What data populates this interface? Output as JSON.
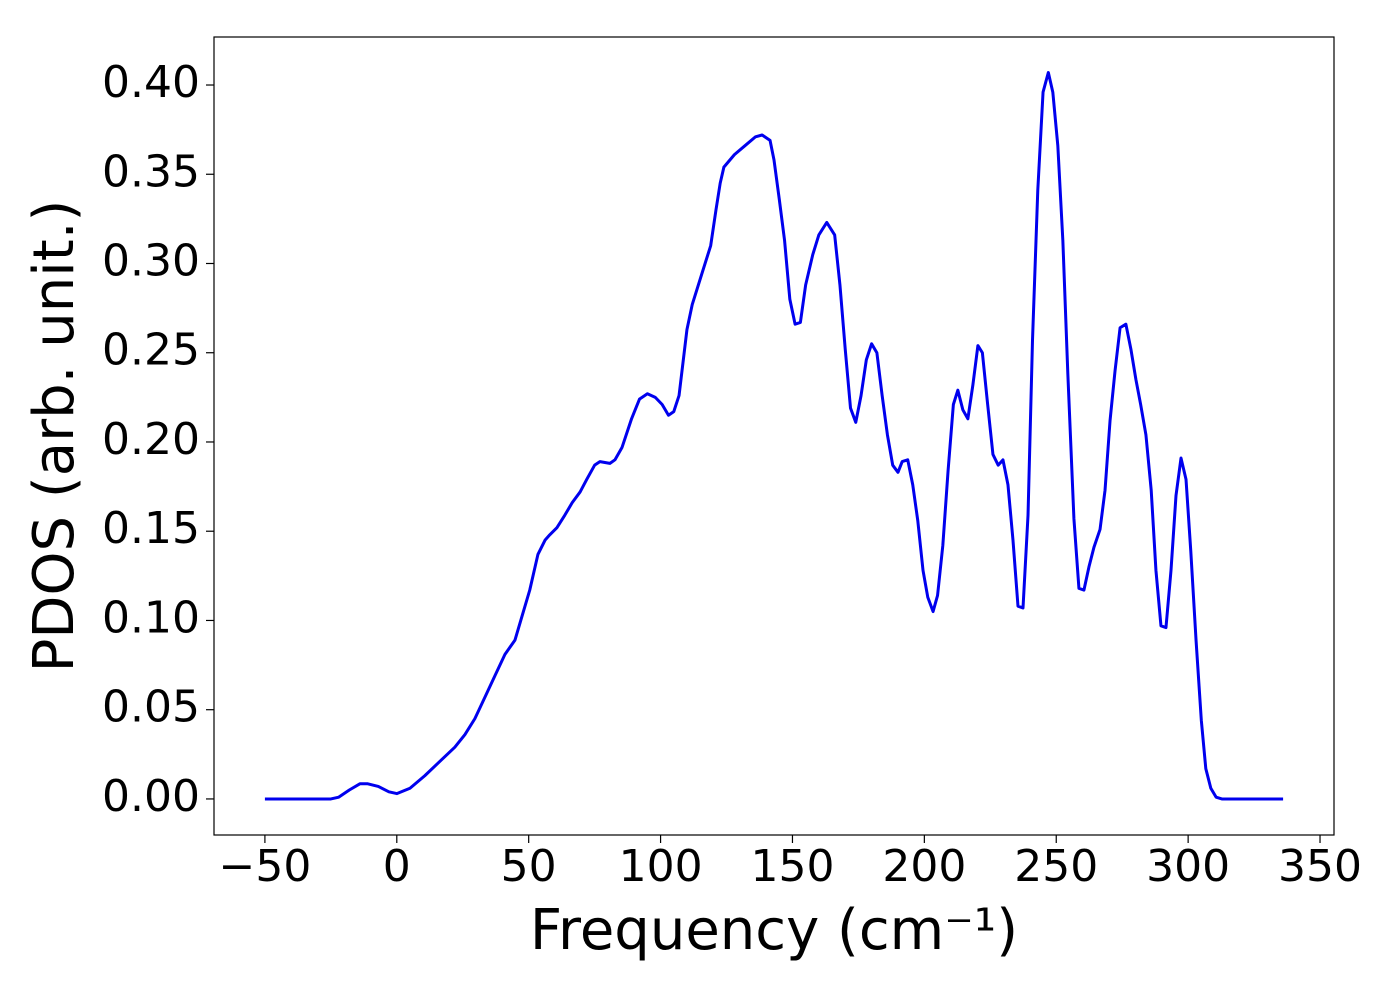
{
  "chart_data": {
    "type": "line",
    "xlabel": "Frequency (cm⁻¹)",
    "ylabel": "PDOS (arb. unit.)",
    "xlim": [
      -69.3,
      355.3
    ],
    "ylim": [
      -0.0202,
      0.4269
    ],
    "xticks": [
      {
        "value": -50,
        "label": "−50"
      },
      0,
      50,
      100,
      150,
      200,
      250,
      300,
      350
    ],
    "yticks": [
      {
        "value": 0,
        "label": "0.00"
      },
      {
        "value": 0.05,
        "label": "0.05"
      },
      {
        "value": 0.1,
        "label": "0.10"
      },
      {
        "value": 0.15,
        "label": "0.15"
      },
      {
        "value": 0.2,
        "label": "0.20"
      },
      {
        "value": 0.25,
        "label": "0.25"
      },
      {
        "value": 0.3,
        "label": "0.30"
      },
      {
        "value": 0.35,
        "label": "0.35"
      },
      {
        "value": 0.4,
        "label": "0.40"
      }
    ],
    "grid": false,
    "x": [
      -50,
      -25,
      -22,
      -18,
      -14,
      -11,
      -7,
      -3,
      0,
      5,
      10.6,
      16.3,
      22,
      25.8,
      29.6,
      33.4,
      37.2,
      41,
      44.8,
      47,
      50.4,
      53.5,
      56.2,
      58,
      60.7,
      63.7,
      66.5,
      69.5,
      72,
      75,
      77,
      80.8,
      82.7,
      85.4,
      89,
      92,
      95,
      98,
      100.6,
      103,
      105,
      107,
      110,
      112,
      115.6,
      119,
      121,
      122.6,
      124,
      128,
      132,
      136,
      138.5,
      141.5,
      143,
      145,
      147,
      149,
      151,
      153,
      155,
      157.7,
      160,
      163,
      166,
      168,
      170,
      172,
      174,
      176,
      178,
      180,
      182,
      184,
      186,
      188,
      190,
      191.6,
      193.7,
      195.6,
      197.5,
      199.5,
      201.3,
      203.3,
      205,
      207,
      209,
      211,
      212.7,
      214.6,
      216.5,
      218.4,
      220.3,
      222,
      224,
      226,
      228,
      229.8,
      231.7,
      233.6,
      235.5,
      237.4,
      239.3,
      241,
      243,
      245,
      247,
      248.7,
      250.6,
      252.5,
      254.4,
      256.7,
      258.6,
      260.5,
      262.4,
      264.3,
      266.6,
      268.5,
      270.4,
      272.3,
      274.2,
      276.4,
      278.3,
      280.2,
      282,
      284,
      286,
      287.8,
      289.7,
      291.6,
      293.5,
      295.4,
      297.3,
      299.2,
      301,
      303,
      305,
      306.7,
      308.6,
      310.6,
      312.8,
      336
    ],
    "series": [
      {
        "name": "PDOS",
        "color": "#0000ee",
        "values": [
          0,
          0,
          0.001,
          0.005,
          0.0085,
          0.0085,
          0.007,
          0.004,
          0.003,
          0.006,
          0.013,
          0.021,
          0.029,
          0.036,
          0.045,
          0.057,
          0.069,
          0.081,
          0.089,
          0.1,
          0.117,
          0.137,
          0.145,
          0.148,
          0.152,
          0.159,
          0.166,
          0.172,
          0.179,
          0.187,
          0.189,
          0.188,
          0.19,
          0.197,
          0.213,
          0.224,
          0.227,
          0.225,
          0.221,
          0.215,
          0.217,
          0.226,
          0.263,
          0.277,
          0.294,
          0.31,
          0.33,
          0.345,
          0.354,
          0.361,
          0.366,
          0.371,
          0.372,
          0.369,
          0.358,
          0.336,
          0.313,
          0.28,
          0.266,
          0.267,
          0.288,
          0.305,
          0.316,
          0.323,
          0.316,
          0.288,
          0.252,
          0.219,
          0.211,
          0.226,
          0.246,
          0.255,
          0.25,
          0.226,
          0.204,
          0.187,
          0.183,
          0.189,
          0.19,
          0.176,
          0.156,
          0.128,
          0.113,
          0.105,
          0.114,
          0.142,
          0.184,
          0.221,
          0.229,
          0.218,
          0.213,
          0.232,
          0.254,
          0.25,
          0.221,
          0.193,
          0.187,
          0.19,
          0.176,
          0.145,
          0.108,
          0.107,
          0.159,
          0.257,
          0.341,
          0.396,
          0.407,
          0.396,
          0.366,
          0.313,
          0.238,
          0.157,
          0.118,
          0.117,
          0.13,
          0.141,
          0.151,
          0.173,
          0.212,
          0.24,
          0.264,
          0.266,
          0.252,
          0.235,
          0.221,
          0.204,
          0.173,
          0.128,
          0.097,
          0.096,
          0.128,
          0.17,
          0.191,
          0.179,
          0.139,
          0.089,
          0.044,
          0.017,
          0.006,
          0.001,
          0,
          0
        ]
      }
    ]
  }
}
